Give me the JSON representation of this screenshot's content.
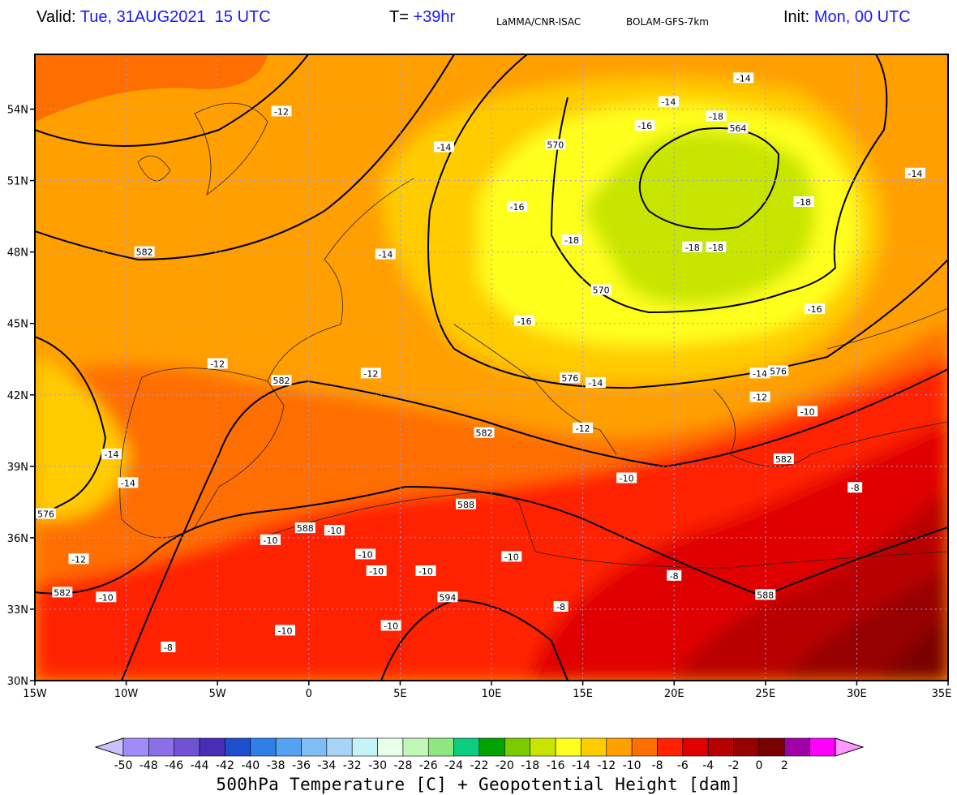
{
  "header": {
    "valid_label": "Valid:",
    "valid_value": "Tue, 31AUG2021  15 UTC",
    "t_label": "T=",
    "t_value": "+39hr",
    "center": "LaMMA/CNR-ISAC",
    "model": "BOLAM-GFS-7km",
    "init_label": "Init:",
    "init_value": "Mon, 00 UTC"
  },
  "map": {
    "lon_ticks": [
      "15W",
      "10W",
      "5W",
      "0",
      "5E",
      "10E",
      "15E",
      "20E",
      "25E",
      "30E",
      "35E"
    ],
    "lat_ticks": [
      "30N",
      "33N",
      "36N",
      "39N",
      "42N",
      "45N",
      "48N",
      "51N",
      "54N"
    ],
    "contour_labels": [
      {
        "text": "582",
        "lon": -9,
        "lat": 48
      },
      {
        "text": "582",
        "lon": -1.5,
        "lat": 42.6
      },
      {
        "text": "582",
        "lon": 9.6,
        "lat": 40.4
      },
      {
        "text": "582",
        "lon": 26,
        "lat": 39.3
      },
      {
        "text": "582",
        "lon": -13.5,
        "lat": 33.7
      },
      {
        "text": "588",
        "lon": 8.6,
        "lat": 37.4
      },
      {
        "text": "588",
        "lon": -0.2,
        "lat": 36.4
      },
      {
        "text": "588",
        "lon": 25,
        "lat": 33.6
      },
      {
        "text": "594",
        "lon": 7.6,
        "lat": 33.5
      },
      {
        "text": "576",
        "lon": 14.3,
        "lat": 42.7
      },
      {
        "text": "576",
        "lon": 25.7,
        "lat": 43
      },
      {
        "text": "576",
        "lon": -14.4,
        "lat": 37
      },
      {
        "text": "570",
        "lon": 16,
        "lat": 46.4
      },
      {
        "text": "570",
        "lon": 13.5,
        "lat": 52.5
      },
      {
        "text": "564",
        "lon": 23.5,
        "lat": 53.2
      }
    ],
    "temp_labels": [
      {
        "text": "-12",
        "lon": -1.5,
        "lat": 53.9
      },
      {
        "text": "-14",
        "lon": 7.4,
        "lat": 52.4
      },
      {
        "text": "-14",
        "lon": 23.8,
        "lat": 55.3
      },
      {
        "text": "-14",
        "lon": 19.7,
        "lat": 54.3
      },
      {
        "text": "-16",
        "lon": 18.4,
        "lat": 53.3
      },
      {
        "text": "-18",
        "lon": 22.3,
        "lat": 53.7
      },
      {
        "text": "-14",
        "lon": 33.2,
        "lat": 51.3
      },
      {
        "text": "-16",
        "lon": 11.4,
        "lat": 49.9
      },
      {
        "text": "-18",
        "lon": 27.1,
        "lat": 50.1
      },
      {
        "text": "-18",
        "lon": 14.4,
        "lat": 48.5
      },
      {
        "text": "-18",
        "lon": 21,
        "lat": 48.2
      },
      {
        "text": "-18",
        "lon": 22.3,
        "lat": 48.2
      },
      {
        "text": "-14",
        "lon": 4.2,
        "lat": 47.9
      },
      {
        "text": "-16",
        "lon": 11.8,
        "lat": 45.1
      },
      {
        "text": "-16",
        "lon": 27.7,
        "lat": 45.6
      },
      {
        "text": "-12",
        "lon": -5,
        "lat": 43.3
      },
      {
        "text": "-12",
        "lon": 3.4,
        "lat": 42.9
      },
      {
        "text": "-14",
        "lon": 15.7,
        "lat": 42.5
      },
      {
        "text": "-14",
        "lon": 24.7,
        "lat": 42.9
      },
      {
        "text": "-12",
        "lon": 24.7,
        "lat": 41.9
      },
      {
        "text": "-10",
        "lon": 27.3,
        "lat": 41.3
      },
      {
        "text": "-12",
        "lon": 15,
        "lat": 40.6
      },
      {
        "text": "-14",
        "lon": -10.8,
        "lat": 39.5
      },
      {
        "text": "-14",
        "lon": -9.9,
        "lat": 38.3
      },
      {
        "text": "-10",
        "lon": 17.4,
        "lat": 38.5
      },
      {
        "text": "-8",
        "lon": 29.9,
        "lat": 38.1
      },
      {
        "text": "-10",
        "lon": -2.1,
        "lat": 35.9
      },
      {
        "text": "-10",
        "lon": 1.4,
        "lat": 36.3
      },
      {
        "text": "-10",
        "lon": 3.1,
        "lat": 35.3
      },
      {
        "text": "-10",
        "lon": 3.7,
        "lat": 34.6
      },
      {
        "text": "-10",
        "lon": 6.4,
        "lat": 34.6
      },
      {
        "text": "-10",
        "lon": 11.1,
        "lat": 35.2
      },
      {
        "text": "-12",
        "lon": -12.6,
        "lat": 35.1
      },
      {
        "text": "-10",
        "lon": -11.1,
        "lat": 33.5
      },
      {
        "text": "-8",
        "lon": 20,
        "lat": 34.4
      },
      {
        "text": "-8",
        "lon": 13.8,
        "lat": 33.1
      },
      {
        "text": "-10",
        "lon": -1.3,
        "lat": 32.1
      },
      {
        "text": "-10",
        "lon": 4.5,
        "lat": 32.3
      },
      {
        "text": "-8",
        "lon": -7.7,
        "lat": 31.4
      }
    ]
  },
  "colorbar": {
    "labels": [
      "-50",
      "-48",
      "-46",
      "-44",
      "-42",
      "-40",
      "-38",
      "-36",
      "-34",
      "-32",
      "-30",
      "-28",
      "-26",
      "-24",
      "-22",
      "-20",
      "-18",
      "-16",
      "-14",
      "-12",
      "-10",
      "-8",
      "-6",
      "-4",
      "-2",
      "0",
      "2"
    ],
    "colors": [
      "#cdc0ff",
      "#a08cf8",
      "#8a6fe8",
      "#7252d4",
      "#4a2db5",
      "#1d4fcf",
      "#2e7fe8",
      "#54a3f2",
      "#7fbdf5",
      "#a8d4f7",
      "#c6f3f7",
      "#e8ffe8",
      "#c2f7b8",
      "#8ce87f",
      "#0ccc7f",
      "#00a300",
      "#7acc00",
      "#c8e500",
      "#ffff1f",
      "#ffcc00",
      "#ff9f00",
      "#ff6e00",
      "#ff2200",
      "#e00000",
      "#b80000",
      "#960000",
      "#780000",
      "#a000a8",
      "#ff00ff",
      "#ff99ff"
    ],
    "title": "500hPa Temperature [C] + Geopotential Height [dam]"
  }
}
